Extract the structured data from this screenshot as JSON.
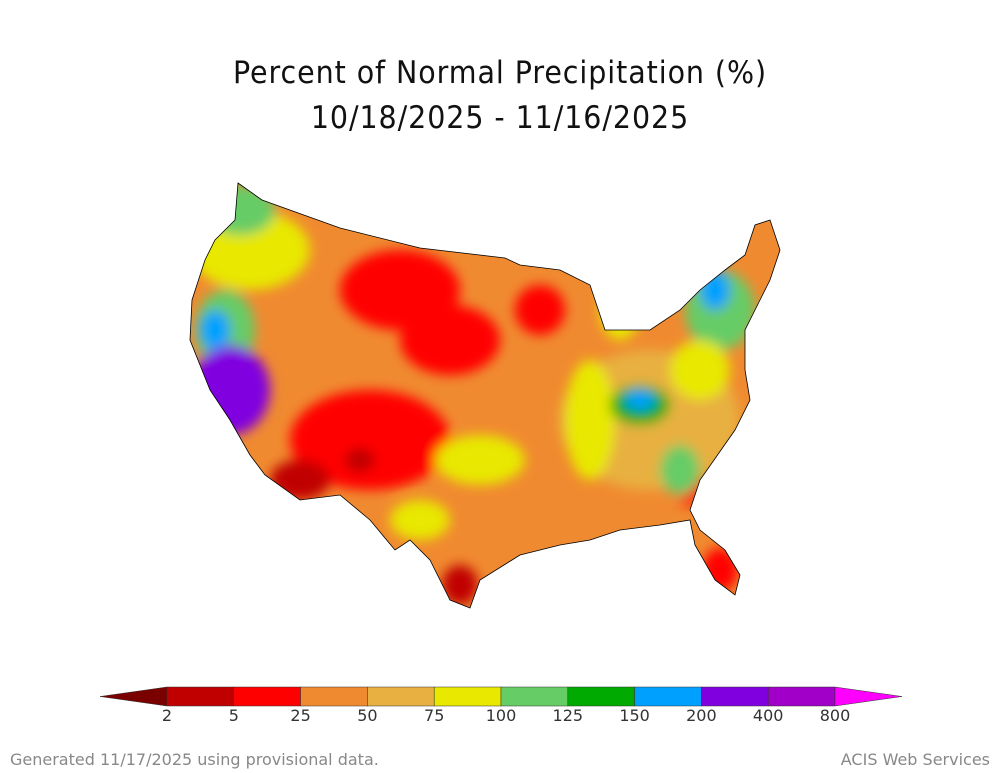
{
  "title": {
    "line1": "Percent of Normal Precipitation (%)",
    "line2": "10/18/2025 - 11/16/2025"
  },
  "legend": {
    "labels": [
      "2",
      "5",
      "25",
      "50",
      "75",
      "100",
      "125",
      "150",
      "200",
      "400",
      "800"
    ],
    "colors": [
      "#7a0000",
      "#c00000",
      "#ff0000",
      "#f08a30",
      "#e8b040",
      "#e8e800",
      "#66cc66",
      "#00aa00",
      "#00a0ff",
      "#8000e0",
      "#a000c8",
      "#ff00ff"
    ]
  },
  "footer": {
    "left": "Generated 11/17/2025 using provisional data.",
    "right": "ACIS Web Services"
  }
}
